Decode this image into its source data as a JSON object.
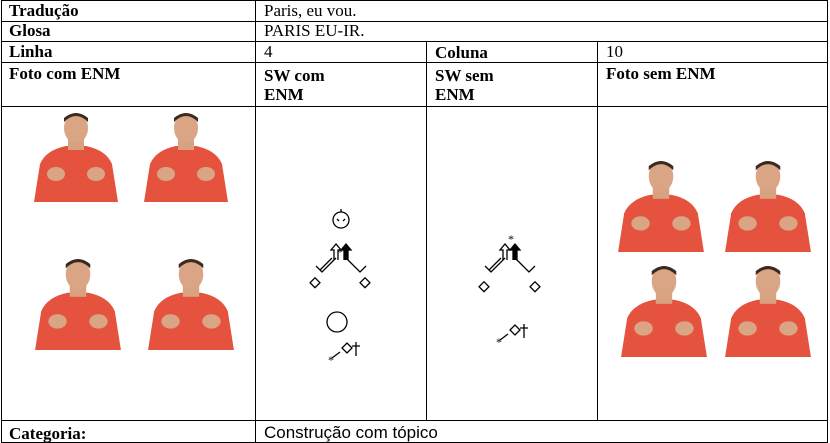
{
  "table": {
    "rows": [
      [
        "Tradução",
        "Paris, eu vou."
      ],
      [
        "Glosa",
        "PARIS EU-IR."
      ],
      [
        "Linha",
        "4",
        "Coluna",
        "10"
      ],
      [
        "Foto com ENM",
        "SW com ENM",
        "SW sem ENM",
        "Foto sem ENM"
      ],
      [
        "Categoria:",
        "Construção com tópico"
      ]
    ]
  }
}
